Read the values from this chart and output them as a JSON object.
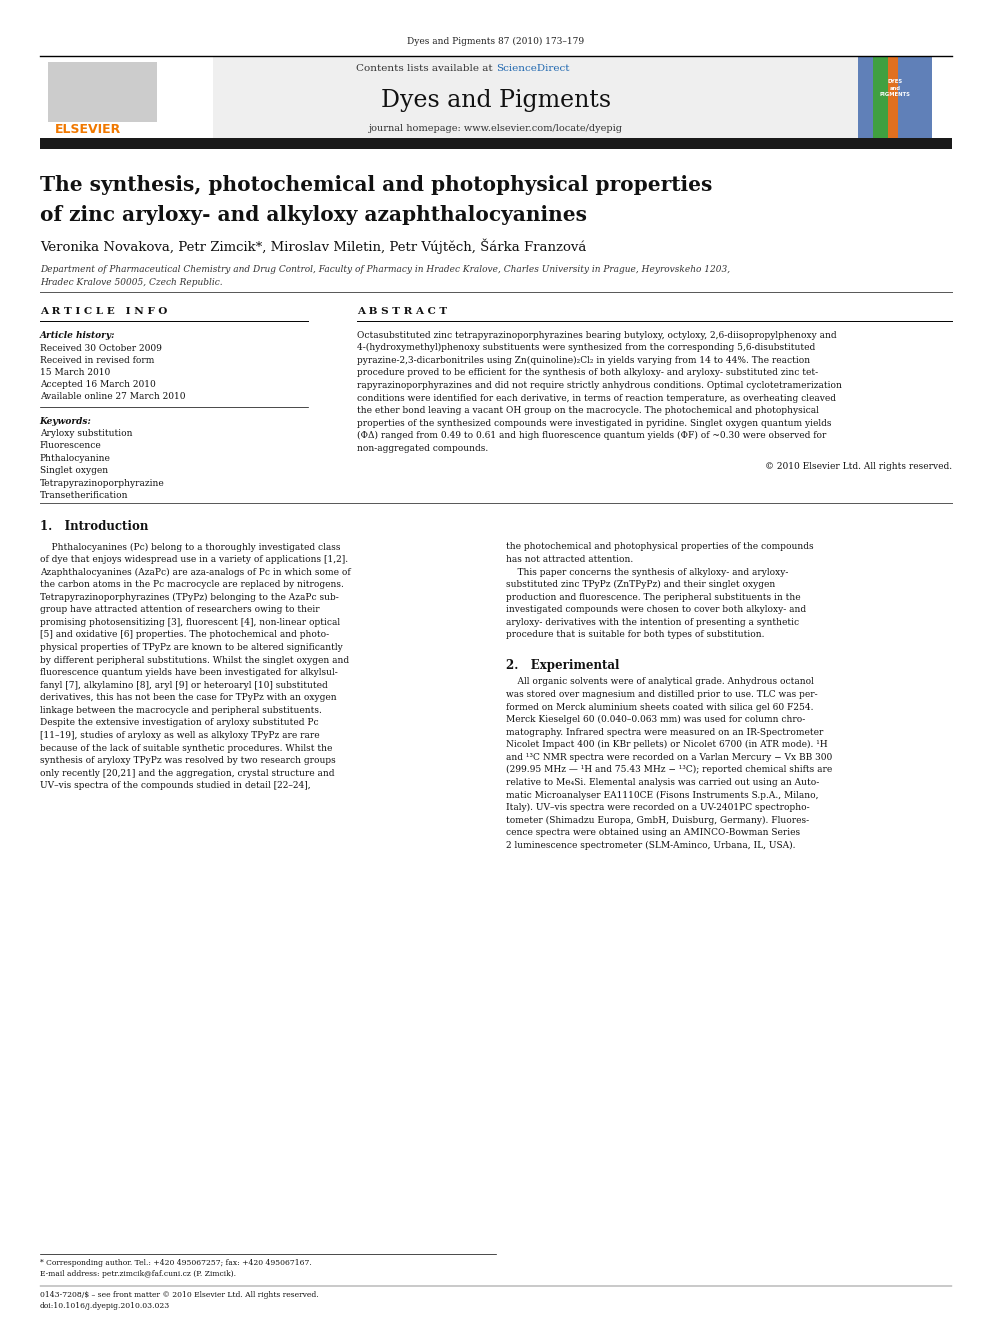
{
  "page_width": 9.92,
  "page_height": 13.23,
  "bg_color": "#ffffff",
  "journal_ref": "Dyes and Pigments 87 (2010) 173–179",
  "header_bg": "#f0f0f0",
  "contents_text": "Contents lists available at ",
  "sciencedirect_text": "ScienceDirect",
  "sciencedirect_color": "#2068b0",
  "journal_name": "Dyes and Pigments",
  "journal_homepage": "journal homepage: www.elsevier.com/locate/dyepig",
  "elsevier_color": "#f07800",
  "black_bar_color": "#1a1a1a",
  "title_line1": "The synthesis, photochemical and photophysical properties",
  "title_line2": "of zinc aryloxy- and alkyloxy azaphthalocyanines",
  "authors": "Veronika Novakova, Petr Zimcik*, Miroslav Miletin, Petr Vújtěch, Šárka Franzová",
  "affiliation": "Department of Pharmaceutical Chemistry and Drug Control, Faculty of Pharmacy in Hradec Kralove, Charles University in Prague, Heyrovskeho 1203,",
  "affiliation2": "Hradec Kralove 50005, Czech Republic.",
  "article_info_title": "A R T I C L E   I N F O",
  "abstract_title": "A B S T R A C T",
  "article_history_label": "Article history:",
  "received1": "Received 30 October 2009",
  "received2": "Received in revised form",
  "date2": "15 March 2010",
  "accepted": "Accepted 16 March 2010",
  "available": "Available online 27 March 2010",
  "keywords_label": "Keywords:",
  "keywords": [
    "Aryloxy substitution",
    "Fluorescence",
    "Phthalocyanine",
    "Singlet oxygen",
    "Tetrapyrazinoporphyrazine",
    "Transetherification"
  ],
  "copyright": "© 2010 Elsevier Ltd. All rights reserved.",
  "intro_heading": "1.   Introduction",
  "section2_heading": "2.   Experimental",
  "footnote_star": "* Corresponding author. Tel.: +420 495067257; fax: +420 495067167.",
  "footnote_email": "E-mail address: petr.zimcik@faf.cuni.cz (P. Zimcik).",
  "bottom_left": "0143-7208/$ – see front matter © 2010 Elsevier Ltd. All rights reserved.",
  "bottom_doi": "doi:10.1016/j.dyepig.2010.03.023",
  "abstract_lines": [
    "Octasubstituted zinc tetrapyrazinoporphyrazines bearing butyloxy, octyloxy, 2,6-diisopropylphenoxy and",
    "4-(hydroxymethyl)phenoxy substituents were synthesized from the corresponding 5,6-disubstituted",
    "pyrazine-2,3-dicarbonitriles using Zn(quinoline)₂Cl₂ in yields varying from 14 to 44%. The reaction",
    "procedure proved to be efficient for the synthesis of both alkyloxy- and aryloxy- substituted zinc tet-",
    "rapyrazinoporphyrazines and did not require strictly anhydrous conditions. Optimal cyclotetramerization",
    "conditions were identified for each derivative, in terms of reaction temperature, as overheating cleaved",
    "the ether bond leaving a vacant OH group on the macrocycle. The photochemical and photophysical",
    "properties of the synthesized compounds were investigated in pyridine. Singlet oxygen quantum yields",
    "(ΦΔ) ranged from 0.49 to 0.61 and high fluorescence quantum yields (ΦF) of ~0.30 were observed for",
    "non-aggregated compounds."
  ],
  "intro_left_lines": [
    "    Phthalocyanines (Pc) belong to a thoroughly investigated class",
    "of dye that enjoys widespread use in a variety of applications [1,2].",
    "Azaphthalocyanines (AzaPc) are aza-analogs of Pc in which some of",
    "the carbon atoms in the Pc macrocycle are replaced by nitrogens.",
    "Tetrapyrazinoporphyrazines (TPyPz) belonging to the AzaPc sub-",
    "group have attracted attention of researchers owing to their",
    "promising photosensitizing [3], fluorescent [4], non-linear optical",
    "[5] and oxidative [6] properties. The photochemical and photo-",
    "physical properties of TPyPz are known to be altered significantly",
    "by different peripheral substitutions. Whilst the singlet oxygen and",
    "fluorescence quantum yields have been investigated for alkylsul-",
    "fanyl [7], alkylamino [8], aryl [9] or heteroaryl [10] substituted",
    "derivatives, this has not been the case for TPyPz with an oxygen",
    "linkage between the macrocycle and peripheral substituents.",
    "Despite the extensive investigation of aryloxy substituted Pc",
    "[11–19], studies of aryloxy as well as alkyloxy TPyPz are rare",
    "because of the lack of suitable synthetic procedures. Whilst the",
    "synthesis of aryloxy TPyPz was resolved by two research groups",
    "only recently [20,21] and the aggregation, crystal structure and",
    "UV–vis spectra of the compounds studied in detail [22–24],"
  ],
  "intro_right_lines": [
    "the photochemical and photophysical properties of the compounds",
    "has not attracted attention.",
    "    This paper concerns the synthesis of alkyloxy- and aryloxy-",
    "substituted zinc TPyPz (ZnTPyPz) and their singlet oxygen",
    "production and fluorescence. The peripheral substituents in the",
    "investigated compounds were chosen to cover both alkyloxy- and",
    "aryloxy- derivatives with the intention of presenting a synthetic",
    "procedure that is suitable for both types of substitution."
  ],
  "sec2_lines": [
    "    All organic solvents were of analytical grade. Anhydrous octanol",
    "was stored over magnesium and distilled prior to use. TLC was per-",
    "formed on Merck aluminium sheets coated with silica gel 60 F254.",
    "Merck Kieselgel 60 (0.040–0.063 mm) was used for column chro-",
    "matography. Infrared spectra were measured on an IR-Spectrometer",
    "Nicolet Impact 400 (in KBr pellets) or Nicolet 6700 (in ATR mode). ¹H",
    "and ¹³C NMR spectra were recorded on a Varlan Mercury − Vx BB 300",
    "(299.95 MHz — ¹H and 75.43 MHz − ¹³C); reported chemical shifts are",
    "relative to Me₄Si. Elemental analysis was carried out using an Auto-",
    "matic Microanalyser EA1110CE (Fisons Instruments S.p.A., Milano,",
    "Italy). UV–vis spectra were recorded on a UV-2401PC spectropho-",
    "tometer (Shimadzu Europa, GmbH, Duisburg, Germany). Fluores-",
    "cence spectra were obtained using an AMINCO-Bowman Series",
    "2 luminescence spectrometer (SLM-Aminco, Urbana, IL, USA)."
  ]
}
